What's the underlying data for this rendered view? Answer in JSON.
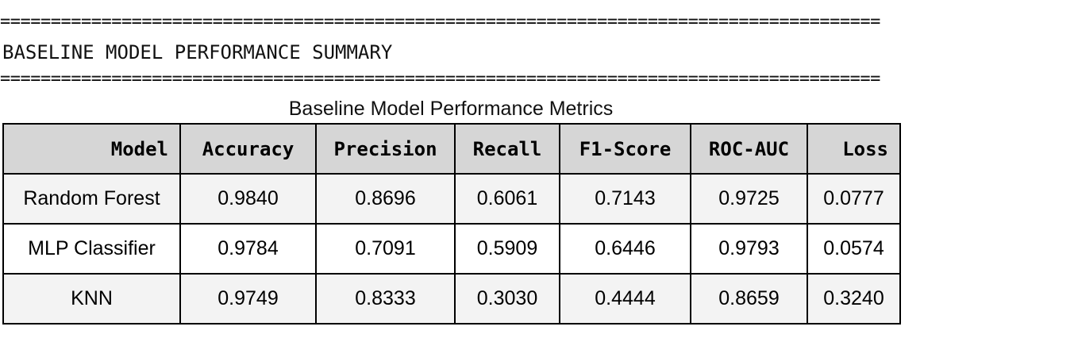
{
  "report": {
    "rule_top": "=======================================================================================",
    "heading": "BASELINE MODEL PERFORMANCE SUMMARY",
    "rule_bottom": "=======================================================================================",
    "table_title": "Baseline Model Performance Metrics"
  },
  "table": {
    "columns": [
      "Model",
      "Accuracy",
      "Precision",
      "Recall",
      "F1-Score",
      "ROC-AUC",
      "Loss"
    ],
    "rows": [
      [
        "Random Forest",
        "0.9840",
        "0.8696",
        "0.6061",
        "0.7143",
        "0.9725",
        "0.0777"
      ],
      [
        "MLP Classifier",
        "0.9784",
        "0.7091",
        "0.5909",
        "0.6446",
        "0.9793",
        "0.0574"
      ],
      [
        "KNN",
        "0.9749",
        "0.8333",
        "0.3030",
        "0.4444",
        "0.8659",
        "0.3240"
      ]
    ]
  }
}
